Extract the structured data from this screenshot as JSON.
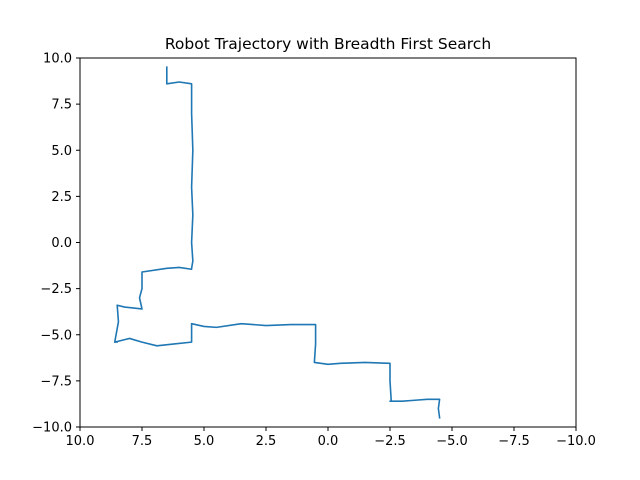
{
  "chart_data": {
    "type": "line",
    "title": "Robot Trajectory with Breadth First Search",
    "xlabel": "",
    "ylabel": "",
    "xlim": [
      10.0,
      -10.0
    ],
    "ylim": [
      -10.0,
      10.0
    ],
    "x_ticks": [
      10.0,
      7.5,
      5.0,
      2.5,
      0.0,
      -2.5,
      -5.0,
      -7.5,
      -10.0
    ],
    "y_ticks": [
      10.0,
      7.5,
      5.0,
      2.5,
      0.0,
      -2.5,
      -5.0,
      -7.5,
      -10.0
    ],
    "x_tick_labels": [
      "10.0",
      "7.5",
      "5.0",
      "2.5",
      "0.0",
      "−2.5",
      "−5.0",
      "−7.5",
      "−10.0"
    ],
    "y_tick_labels": [
      "10.0",
      "7.5",
      "5.0",
      "2.5",
      "0.0",
      "−2.5",
      "−5.0",
      "−7.5",
      "−10.0"
    ],
    "grid": false,
    "line_color": "#1f77b4",
    "series": [
      {
        "x": [
          6.5,
          6.5,
          6.0,
          5.5,
          5.5,
          5.45,
          5.5,
          5.45,
          5.5,
          5.45,
          5.5,
          5.5,
          6.0,
          6.5,
          7.5,
          7.5,
          7.6,
          7.5,
          8.2,
          8.5,
          8.45,
          8.6,
          8.5,
          8.6,
          8.0,
          7.5,
          6.9,
          6.2,
          5.5,
          5.5,
          5.0,
          4.5,
          3.5,
          2.5,
          1.5,
          0.5,
          0.5,
          0.55,
          0.0,
          -0.5,
          -1.5,
          -2.5,
          -2.5,
          -2.55,
          -2.5,
          -3.0,
          -3.5,
          -4.0,
          -4.5,
          -4.45,
          -4.5
        ],
        "y": [
          9.5,
          8.6,
          8.7,
          8.6,
          7.0,
          5.0,
          3.0,
          1.5,
          0.0,
          -1.0,
          -1.4,
          -1.45,
          -1.35,
          -1.4,
          -1.6,
          -2.5,
          -3.0,
          -3.6,
          -3.5,
          -3.4,
          -4.3,
          -5.4,
          -5.4,
          -5.4,
          -5.2,
          -5.4,
          -5.6,
          -5.5,
          -5.4,
          -4.4,
          -4.55,
          -4.6,
          -4.4,
          -4.5,
          -4.45,
          -4.45,
          -5.5,
          -6.5,
          -6.6,
          -6.55,
          -6.5,
          -6.55,
          -7.5,
          -8.6,
          -8.6,
          -8.6,
          -8.55,
          -8.5,
          -8.5,
          -9.0,
          -9.5
        ]
      }
    ]
  }
}
